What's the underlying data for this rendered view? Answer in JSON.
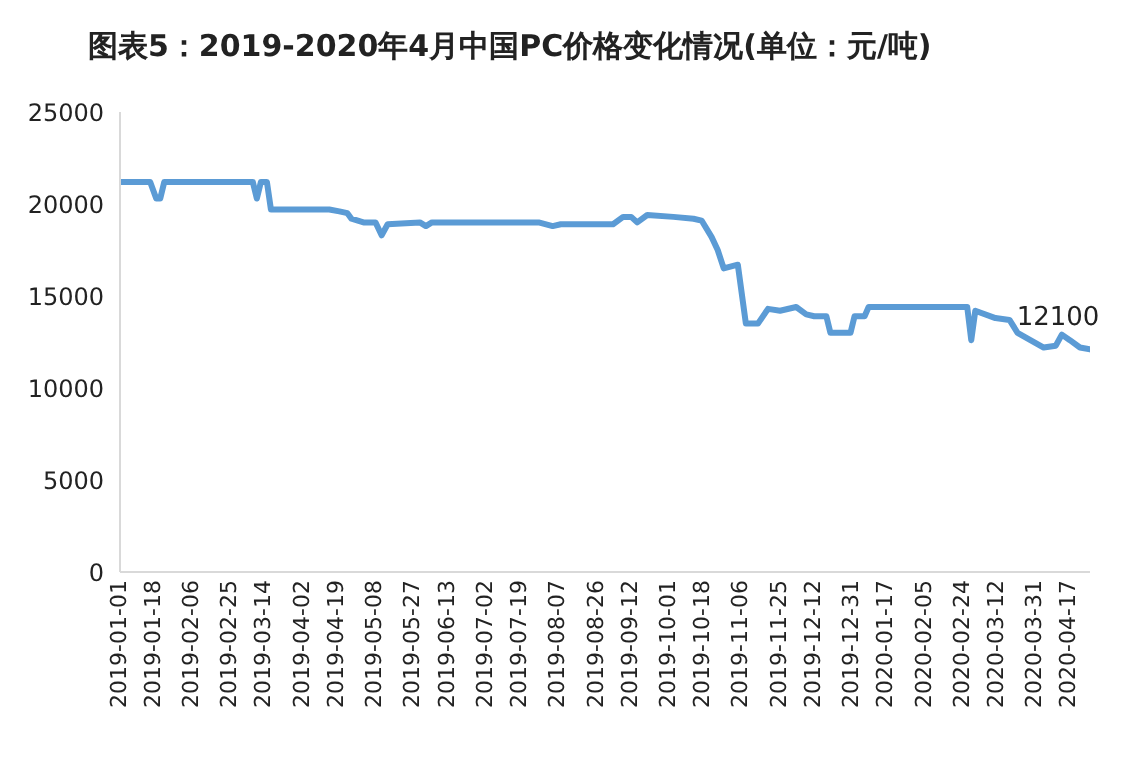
{
  "chart_data": {
    "type": "line",
    "title": "图表5：2019-2020年4月中国PC价格变化情况(单位：元/吨)",
    "x": [
      "2019-01-01",
      "2019-01-16",
      "2019-01-19",
      "2019-01-21",
      "2019-01-23",
      "2019-03-08",
      "2019-03-10",
      "2019-03-12",
      "2019-03-15",
      "2019-03-17",
      "2019-04-15",
      "2019-04-20",
      "2019-04-24",
      "2019-04-26",
      "2019-05-02",
      "2019-05-08",
      "2019-05-11",
      "2019-05-14",
      "2019-05-30",
      "2019-06-02",
      "2019-06-05",
      "2019-07-28",
      "2019-08-04",
      "2019-08-08",
      "2019-09-03",
      "2019-09-08",
      "2019-09-12",
      "2019-09-15",
      "2019-09-20",
      "2019-10-03",
      "2019-10-13",
      "2019-10-17",
      "2019-10-22",
      "2019-10-25",
      "2019-10-28",
      "2019-11-04",
      "2019-11-08",
      "2019-11-14",
      "2019-11-19",
      "2019-11-25",
      "2019-12-03",
      "2019-12-08",
      "2019-12-12",
      "2019-12-18",
      "2019-12-20",
      "2019-12-30",
      "2020-01-01",
      "2020-01-06",
      "2020-01-08",
      "2020-02-26",
      "2020-02-28",
      "2020-03-01",
      "2020-03-11",
      "2020-03-18",
      "2020-03-22",
      "2020-04-04",
      "2020-04-10",
      "2020-04-13",
      "2020-04-17",
      "2020-04-22",
      "2020-04-27"
    ],
    "series": [
      {
        "color": "#5b9bd5",
        "values": [
          21200,
          21200,
          20300,
          20300,
          21200,
          21200,
          20300,
          21200,
          21200,
          19700,
          19700,
          19600,
          19500,
          19200,
          19000,
          19000,
          18300,
          18900,
          19000,
          18800,
          19000,
          19000,
          18800,
          18900,
          18900,
          19300,
          19300,
          19000,
          19400,
          19300,
          19200,
          19100,
          18200,
          17500,
          16500,
          16700,
          13500,
          13500,
          14300,
          14200,
          14400,
          14000,
          13900,
          13900,
          13000,
          13000,
          13900,
          13900,
          14400,
          14400,
          12600,
          14200,
          13800,
          13700,
          13000,
          12200,
          12300,
          12900,
          12600,
          12200,
          12100
        ]
      }
    ],
    "xlim": [
      "2019-01-01",
      "2020-04-27"
    ],
    "xticks": [
      "2019-01-01",
      "2019-01-18",
      "2019-02-06",
      "2019-02-25",
      "2019-03-14",
      "2019-04-02",
      "2019-04-19",
      "2019-05-08",
      "2019-05-27",
      "2019-06-13",
      "2019-07-02",
      "2019-07-19",
      "2019-08-07",
      "2019-08-26",
      "2019-09-12",
      "2019-10-01",
      "2019-10-18",
      "2019-11-06",
      "2019-11-25",
      "2019-12-12",
      "2019-12-31",
      "2020-01-17",
      "2020-02-05",
      "2020-02-24",
      "2020-03-12",
      "2020-03-31",
      "2020-04-17"
    ],
    "ylim": [
      0,
      25000
    ],
    "yticks": [
      0,
      5000,
      10000,
      15000,
      20000,
      25000
    ],
    "annotations": [
      {
        "text": "12100",
        "x": "2020-04-27",
        "y": 12100
      }
    ],
    "grid": false,
    "legend": false,
    "marker": "none",
    "line_style": "solid"
  }
}
